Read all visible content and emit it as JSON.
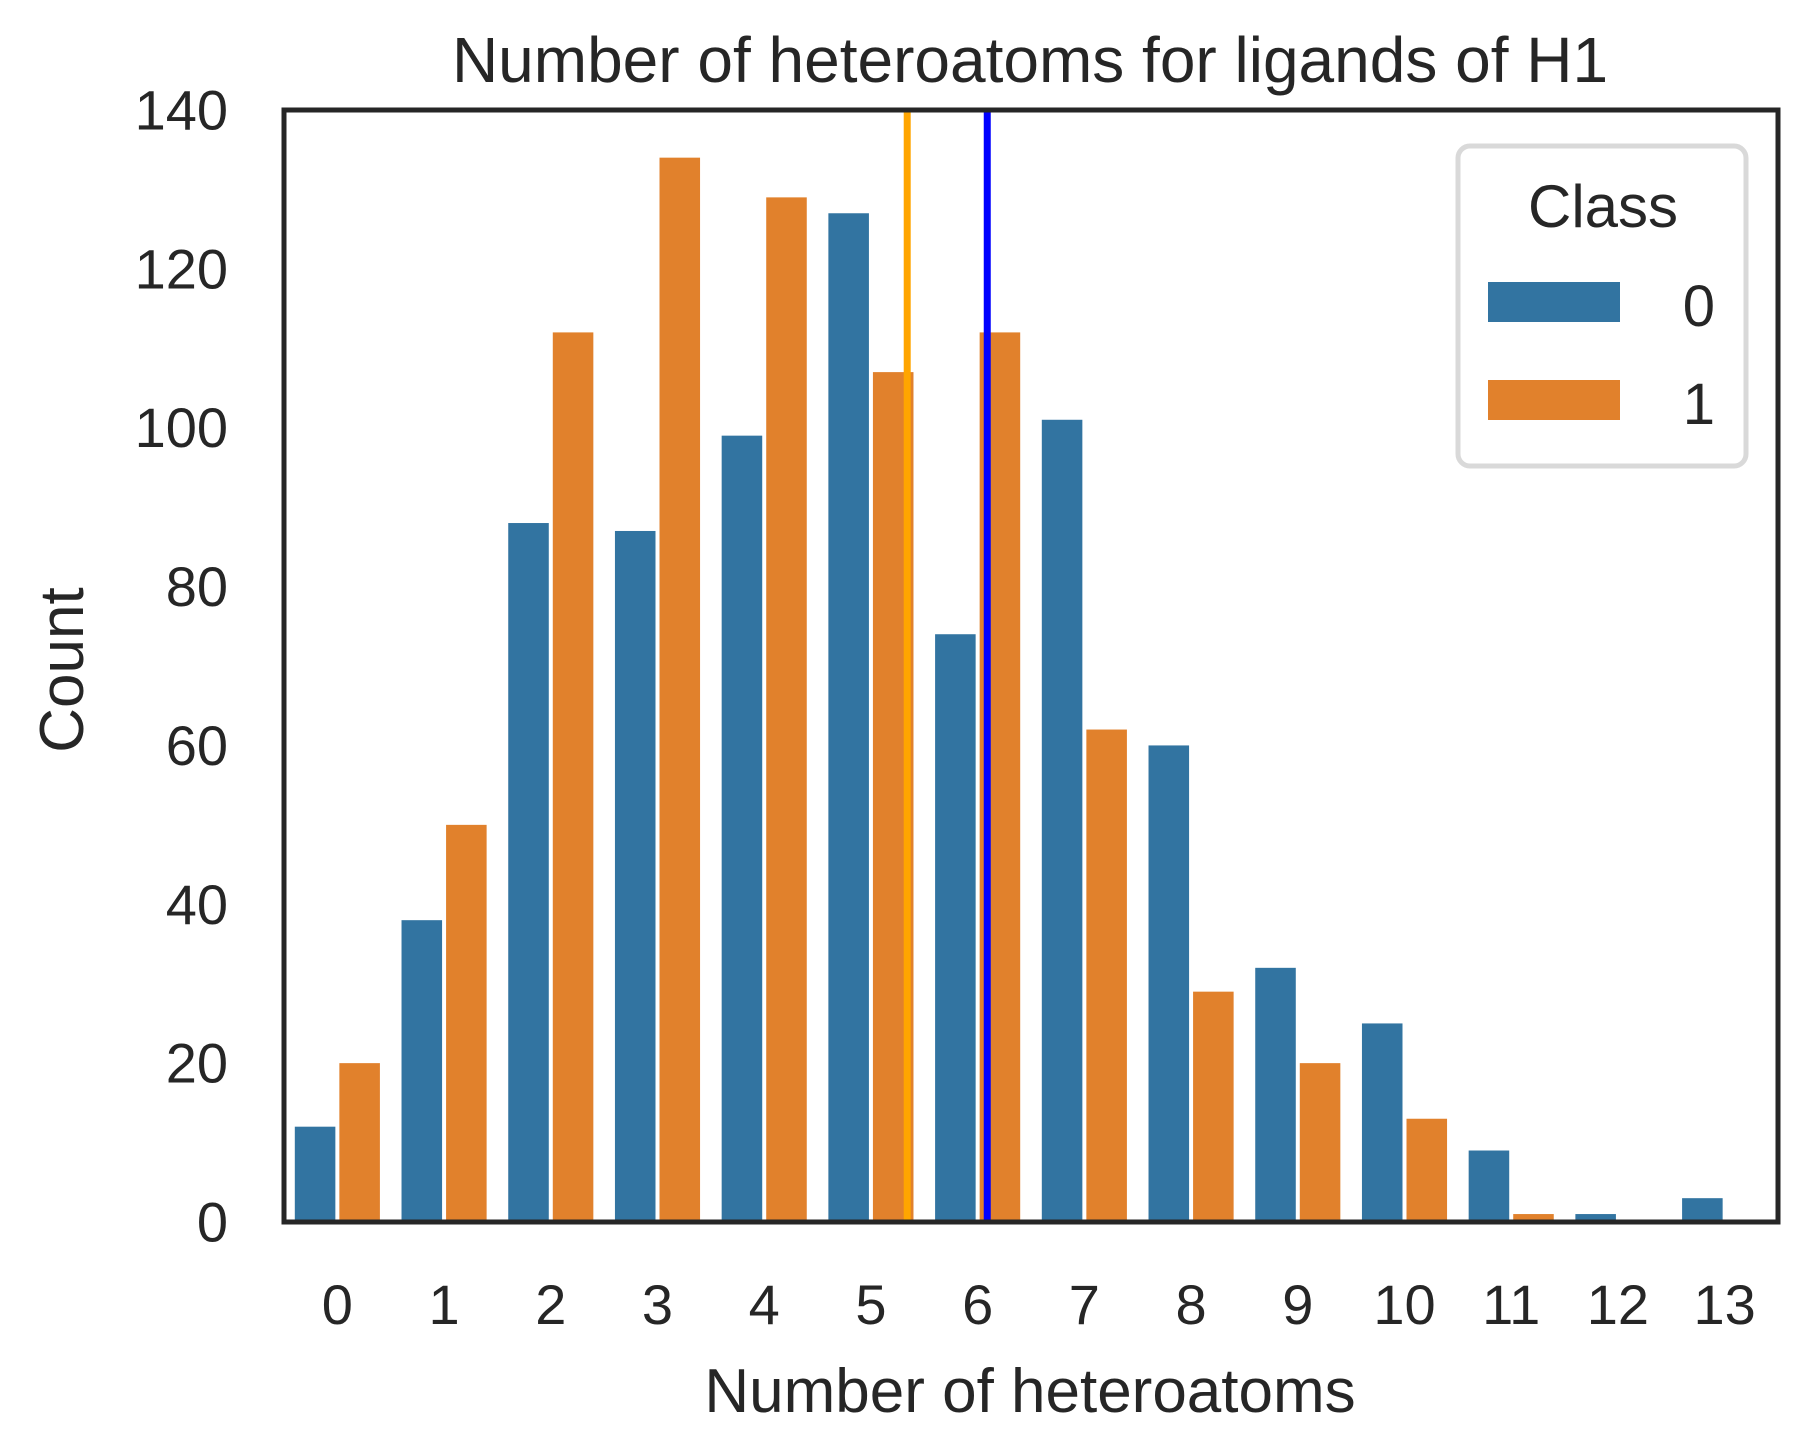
{
  "chart_data": {
    "type": "bar",
    "title": "Number of heteroatoms for ligands of H1",
    "xlabel": "Number of heteroatoms",
    "ylabel": "Count",
    "categories": [
      "0",
      "1",
      "2",
      "3",
      "4",
      "5",
      "6",
      "7",
      "8",
      "9",
      "10",
      "11",
      "12",
      "13"
    ],
    "ylim": [
      0,
      140
    ],
    "yticks": [
      0,
      20,
      40,
      60,
      80,
      100,
      120,
      140
    ],
    "grid": false,
    "legend": {
      "title": "Class",
      "position": "top-right"
    },
    "series": [
      {
        "name": "0",
        "color": "#3274a1",
        "values": [
          12,
          38,
          88,
          87,
          99,
          127,
          74,
          101,
          60,
          32,
          25,
          9,
          1,
          3
        ]
      },
      {
        "name": "1",
        "color": "#e1812c",
        "values": [
          20,
          50,
          112,
          134,
          129,
          107,
          112,
          62,
          29,
          20,
          13,
          1,
          0.3,
          0
        ]
      }
    ],
    "reference_lines": [
      {
        "x": 5.34,
        "color": "#ffa500"
      },
      {
        "x": 6.09,
        "color": "#0000ff"
      }
    ]
  }
}
